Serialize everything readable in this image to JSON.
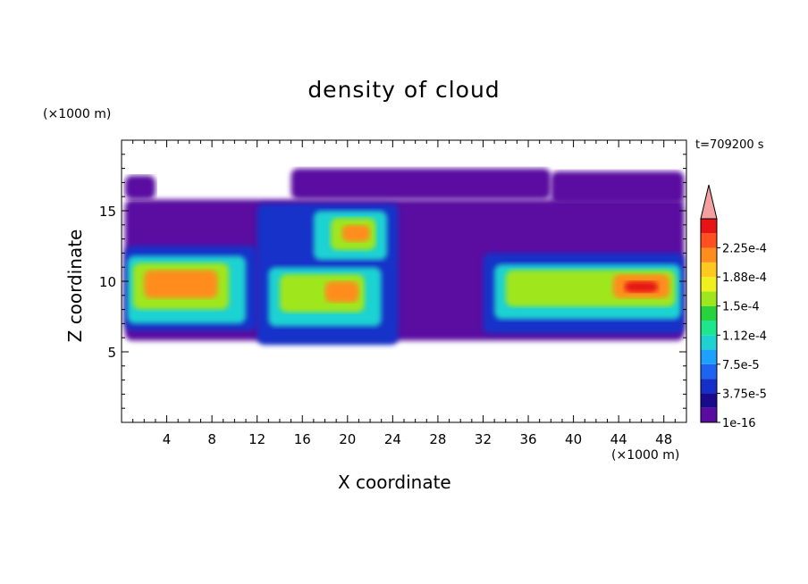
{
  "chart_data": {
    "type": "heatmap",
    "title": "density of cloud",
    "xlabel": "X coordinate",
    "ylabel": "Z coordinate",
    "x_unit_label": "(×1000 m)",
    "y_unit_label": "(×1000 m)",
    "timestamp": "t=709200 s",
    "xlim": [
      0,
      50
    ],
    "ylim": [
      0,
      20
    ],
    "x_ticks": [
      "4",
      "8",
      "12",
      "16",
      "20",
      "24",
      "28",
      "32",
      "36",
      "40",
      "44",
      "48"
    ],
    "y_ticks": [
      "5",
      "10",
      "15"
    ],
    "colorbar": {
      "levels": [
        1e-16,
        1.875e-05,
        3.75e-05,
        5.625e-05,
        7.5e-05,
        9.375e-05,
        0.0001125,
        0.00013125,
        0.00015,
        0.00016875,
        0.0001875,
        0.00020625,
        0.000225,
        0.00024375
      ],
      "labels": [
        "2.25e-4",
        "1.88e-4",
        "1.5e-4",
        "1.12e-4",
        "7.5e-5",
        "3.75e-5",
        "1e-16"
      ],
      "colors": [
        "#5a0ca0",
        "#1a0a8c",
        "#1530c8",
        "#1e64f0",
        "#1ea0ff",
        "#1ed2d2",
        "#1ee68c",
        "#28d23c",
        "#a0e61e",
        "#f0f01e",
        "#ffc81e",
        "#ff8c1e",
        "#ff501e",
        "#e61414"
      ],
      "extend_color": "#f4a0a0"
    },
    "regions": [
      {
        "level": 0,
        "x": [
          0.3,
          49.8
        ],
        "z": [
          5.8,
          15.8
        ]
      },
      {
        "level": 0,
        "x": [
          0.3,
          3.0
        ],
        "z": [
          15.8,
          17.5
        ]
      },
      {
        "level": 0,
        "x": [
          15.0,
          38.0
        ],
        "z": [
          15.8,
          18.0
        ]
      },
      {
        "level": 0,
        "x": [
          38.0,
          49.8
        ],
        "z": [
          15.5,
          17.8
        ]
      },
      {
        "level": 2,
        "x": [
          0.3,
          12.0
        ],
        "z": [
          6.5,
          12.5
        ]
      },
      {
        "level": 2,
        "x": [
          12.0,
          24.5
        ],
        "z": [
          5.5,
          15.5
        ]
      },
      {
        "level": 2,
        "x": [
          32.0,
          49.8
        ],
        "z": [
          6.3,
          12.0
        ]
      },
      {
        "level": 5,
        "x": [
          0.5,
          11.0
        ],
        "z": [
          7.0,
          11.8
        ]
      },
      {
        "level": 5,
        "x": [
          13.0,
          23.0
        ],
        "z": [
          6.8,
          11.0
        ]
      },
      {
        "level": 5,
        "x": [
          17.0,
          23.5
        ],
        "z": [
          11.5,
          15.0
        ]
      },
      {
        "level": 5,
        "x": [
          33.0,
          49.5
        ],
        "z": [
          7.3,
          11.2
        ]
      },
      {
        "level": 8,
        "x": [
          1.0,
          9.5
        ],
        "z": [
          8.0,
          11.3
        ]
      },
      {
        "level": 8,
        "x": [
          14.0,
          21.5
        ],
        "z": [
          7.8,
          10.5
        ]
      },
      {
        "level": 8,
        "x": [
          18.5,
          22.5
        ],
        "z": [
          12.2,
          14.5
        ]
      },
      {
        "level": 8,
        "x": [
          34.0,
          49.0
        ],
        "z": [
          8.2,
          10.8
        ]
      },
      {
        "level": 11,
        "x": [
          2.0,
          8.5
        ],
        "z": [
          8.8,
          10.8
        ]
      },
      {
        "level": 11,
        "x": [
          18.0,
          21.0
        ],
        "z": [
          8.5,
          10.0
        ]
      },
      {
        "level": 11,
        "x": [
          19.5,
          22.0
        ],
        "z": [
          12.8,
          14.0
        ]
      },
      {
        "level": 11,
        "x": [
          43.5,
          48.5
        ],
        "z": [
          8.8,
          10.5
        ]
      },
      {
        "level": 13,
        "x": [
          44.5,
          47.5
        ],
        "z": [
          9.2,
          10.0
        ]
      }
    ]
  }
}
